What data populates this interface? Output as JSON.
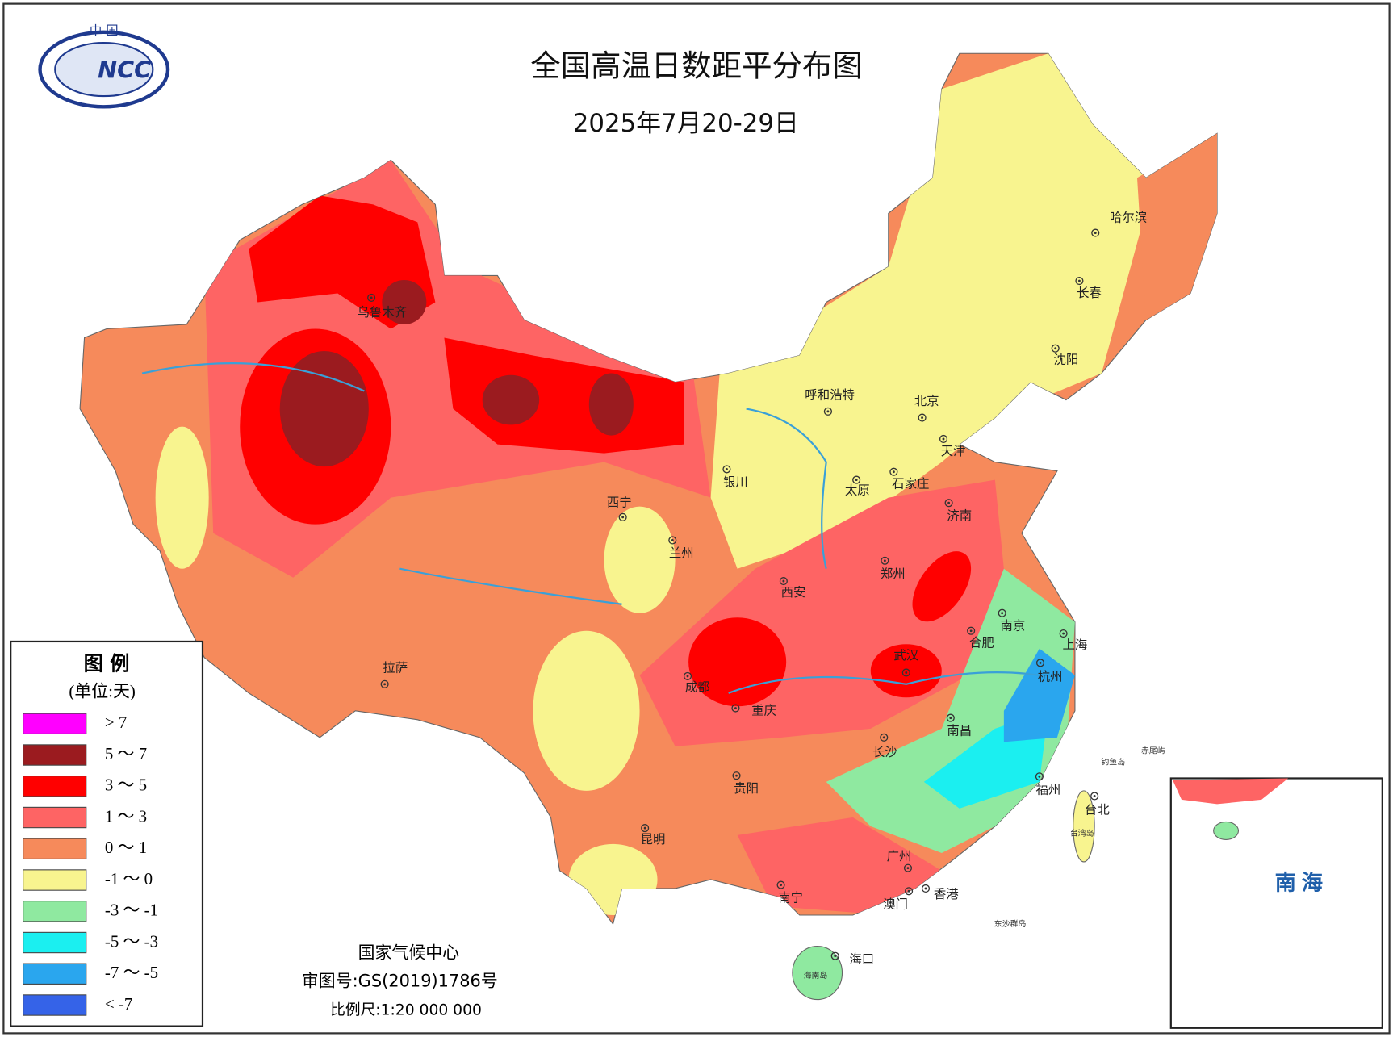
{
  "header": {
    "title": "全国高温日数距平分布图",
    "subtitle": "2025年7月20-29日",
    "logo_top": "中 国",
    "logo": "NCC"
  },
  "legend": {
    "title": "图 例",
    "unit": "(单位:天)",
    "items": [
      {
        "label": "> 7",
        "color": "#ff00ff"
      },
      {
        "label": "5 ～ 7",
        "color": "#9b1b1f"
      },
      {
        "label": "3 ～ 5",
        "color": "#ff0000"
      },
      {
        "label": "1 ～ 3",
        "color": "#fe6464"
      },
      {
        "label": "0 ～ 1",
        "color": "#f68a5b"
      },
      {
        "label": "-1 ～ 0",
        "color": "#f8f48f"
      },
      {
        "label": "-3 ～ -1",
        "color": "#8fe9a0"
      },
      {
        "label": "-5 ～ -3",
        "color": "#1beff0"
      },
      {
        "label": "-7 ～ -5",
        "color": "#2aa6ee"
      },
      {
        "label": "< -7",
        "color": "#3563e8"
      }
    ]
  },
  "cities": [
    "乌鲁木齐",
    "拉萨",
    "西宁",
    "兰州",
    "银川",
    "呼和浩特",
    "北京",
    "天津",
    "石家庄",
    "太原",
    "济南",
    "郑州",
    "西安",
    "南京",
    "合肥",
    "上海",
    "杭州",
    "武汉",
    "成都",
    "重庆",
    "南昌",
    "长沙",
    "福州",
    "贵阳",
    "昆明",
    "台北",
    "广州",
    "南宁",
    "香港",
    "澳门",
    "海口",
    "哈尔滨",
    "长春",
    "沈阳"
  ],
  "islands": [
    "海南岛",
    "台湾岛",
    "东沙群岛",
    "钓鱼岛",
    "赤尾屿"
  ],
  "inset": {
    "label": "南 海"
  },
  "footer": {
    "org": "国家气候中心",
    "approval": "审图号:GS(2019)1786号",
    "scale": "比例尺:1:20 000 000"
  }
}
